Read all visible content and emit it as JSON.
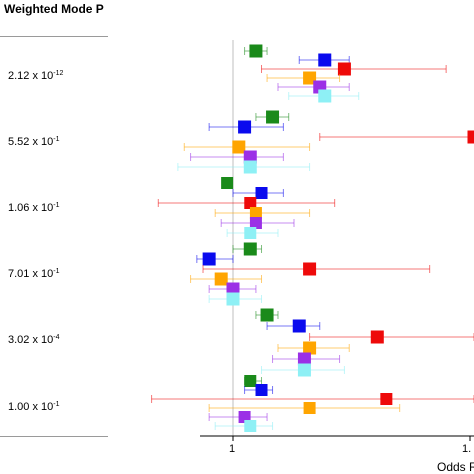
{
  "header": {
    "title": "Weighted Mode P"
  },
  "rows": [
    {
      "mantissa": "2.12 x 10",
      "exponent": "-12"
    },
    {
      "mantissa": "5.52 x 10",
      "exponent": "-1"
    },
    {
      "mantissa": "1.06 x 10",
      "exponent": "-1"
    },
    {
      "mantissa": "7.01 x 10",
      "exponent": "-1"
    },
    {
      "mantissa": "3.02 x 10",
      "exponent": "-4"
    },
    {
      "mantissa": "1.00 x 10",
      "exponent": "-1"
    }
  ],
  "axis": {
    "tick_1": "1",
    "tick_2": "1.",
    "xlabel": "Odds R"
  },
  "colors": {
    "green": "#1a8a1a",
    "blue": "#0a0aee",
    "red": "#ee0a0a",
    "orange": "#ffa500",
    "purple": "#9b30e6",
    "cyan": "#8ef0f5"
  },
  "chart_data": {
    "type": "forest",
    "xscale": "log",
    "reference_line": 1,
    "xlim": [
      0.8,
      1.5
    ],
    "groups": [
      {
        "p_value": "2.12 x 10^-12",
        "estimates": [
          {
            "color": "green",
            "or": 1.04,
            "lo": 1.02,
            "hi": 1.06
          },
          {
            "color": "blue",
            "or": 1.17,
            "lo": 1.12,
            "hi": 1.22
          },
          {
            "color": "red",
            "or": 1.21,
            "lo": 1.05,
            "hi": 1.44
          },
          {
            "color": "orange",
            "or": 1.14,
            "lo": 1.06,
            "hi": 1.2
          },
          {
            "color": "purple",
            "or": 1.16,
            "lo": 1.08,
            "hi": 1.22
          },
          {
            "color": "cyan",
            "or": 1.17,
            "lo": 1.1,
            "hi": 1.24
          }
        ]
      },
      {
        "p_value": "5.52 x 10^-1",
        "estimates": [
          {
            "color": "green",
            "or": 1.07,
            "lo": 1.04,
            "hi": 1.1
          },
          {
            "color": "blue",
            "or": 1.02,
            "lo": 0.96,
            "hi": 1.09
          },
          {
            "color": "red",
            "or": 1.6,
            "lo": 1.16,
            "hi": 2.0
          },
          {
            "color": "orange",
            "or": 1.01,
            "lo": 0.92,
            "hi": 1.14
          },
          {
            "color": "purple",
            "or": 1.03,
            "lo": 0.93,
            "hi": 1.09
          },
          {
            "color": "cyan",
            "or": 1.03,
            "lo": 0.91,
            "hi": 1.14
          }
        ]
      },
      {
        "p_value": "1.06 x 10^-1",
        "estimates": [
          {
            "color": "green",
            "or": 0.99,
            "lo": 0.99,
            "hi": 0.99
          },
          {
            "color": "blue",
            "or": 1.05,
            "lo": 1.0,
            "hi": 1.09
          },
          {
            "color": "red",
            "or": 1.03,
            "lo": 0.88,
            "hi": 1.19
          },
          {
            "color": "orange",
            "or": 1.04,
            "lo": 0.97,
            "hi": 1.14
          },
          {
            "color": "purple",
            "or": 1.04,
            "lo": 0.98,
            "hi": 1.11
          },
          {
            "color": "cyan",
            "or": 1.03,
            "lo": 0.99,
            "hi": 1.08
          }
        ]
      },
      {
        "p_value": "7.01 x 10^-1",
        "estimates": [
          {
            "color": "green",
            "or": 1.03,
            "lo": 1.0,
            "hi": 1.05
          },
          {
            "color": "blue",
            "or": 0.96,
            "lo": 0.94,
            "hi": 1.0
          },
          {
            "color": "red",
            "or": 1.14,
            "lo": 0.95,
            "hi": 1.4
          },
          {
            "color": "orange",
            "or": 0.98,
            "lo": 0.93,
            "hi": 1.05
          },
          {
            "color": "purple",
            "or": 1.0,
            "lo": 0.96,
            "hi": 1.04
          },
          {
            "color": "cyan",
            "or": 1.0,
            "lo": 0.96,
            "hi": 1.05
          }
        ]
      },
      {
        "p_value": "3.02 x 10^-4",
        "estimates": [
          {
            "color": "green",
            "or": 1.06,
            "lo": 1.04,
            "hi": 1.08
          },
          {
            "color": "blue",
            "or": 1.12,
            "lo": 1.06,
            "hi": 1.16
          },
          {
            "color": "red",
            "or": 1.28,
            "lo": 1.14,
            "hi": 1.55
          },
          {
            "color": "orange",
            "or": 1.14,
            "lo": 1.08,
            "hi": 1.22
          },
          {
            "color": "purple",
            "or": 1.13,
            "lo": 1.07,
            "hi": 1.2
          },
          {
            "color": "cyan",
            "or": 1.13,
            "lo": 1.05,
            "hi": 1.21
          }
        ]
      },
      {
        "p_value": "1.00 x 10^-1",
        "estimates": [
          {
            "color": "green",
            "or": 1.03,
            "lo": 1.02,
            "hi": 1.05
          },
          {
            "color": "blue",
            "or": 1.05,
            "lo": 1.02,
            "hi": 1.07
          },
          {
            "color": "red",
            "or": 1.3,
            "lo": 0.87,
            "hi": 1.6
          },
          {
            "color": "orange",
            "or": 1.14,
            "lo": 0.96,
            "hi": 1.33
          },
          {
            "color": "purple",
            "or": 1.02,
            "lo": 0.96,
            "hi": 1.06
          },
          {
            "color": "cyan",
            "or": 1.03,
            "lo": 0.97,
            "hi": 1.07
          }
        ]
      }
    ]
  }
}
